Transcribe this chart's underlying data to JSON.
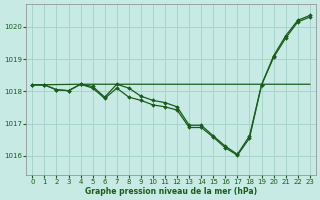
{
  "background_color": "#c8eae4",
  "line_color": "#1a5c1a",
  "grid_color": "#a8d4cc",
  "xlabel": "Graphe pression niveau de la mer (hPa)",
  "ylim": [
    1015.4,
    1020.7
  ],
  "xlim": [
    -0.5,
    23.5
  ],
  "yticks": [
    1016,
    1017,
    1018,
    1019,
    1020
  ],
  "xticks": [
    0,
    1,
    2,
    3,
    4,
    5,
    6,
    7,
    8,
    9,
    10,
    11,
    12,
    13,
    14,
    15,
    16,
    17,
    18,
    19,
    20,
    21,
    22,
    23
  ],
  "s1x": [
    0,
    1,
    2,
    3,
    4,
    5,
    6,
    7,
    8,
    9,
    10,
    11,
    12,
    13,
    14,
    15,
    16,
    17,
    18,
    19,
    20,
    21,
    22,
    23
  ],
  "s1y": [
    1018.2,
    1018.2,
    1018.05,
    1018.02,
    1018.22,
    1018.1,
    1017.78,
    1018.1,
    1017.82,
    1017.72,
    1017.58,
    1017.52,
    1017.42,
    1016.88,
    1016.88,
    1016.58,
    1016.25,
    1016.02,
    1016.55,
    1018.2,
    1019.05,
    1019.65,
    1020.15,
    1020.3
  ],
  "s2x": [
    0,
    4,
    19,
    20,
    21,
    22,
    23
  ],
  "s2y": [
    1018.2,
    1018.22,
    1018.22,
    1018.22,
    1018.22,
    1018.22,
    1018.22
  ],
  "s3x": [
    0,
    1,
    2,
    3,
    4,
    5,
    6,
    7,
    8,
    9,
    10,
    11,
    12,
    13,
    14,
    15,
    16,
    17,
    18,
    19,
    20,
    21,
    22,
    23
  ],
  "s3y": [
    1018.2,
    1018.2,
    1018.05,
    1018.02,
    1018.22,
    1018.15,
    1017.82,
    1018.22,
    1018.1,
    1017.85,
    1017.72,
    1017.65,
    1017.52,
    1016.95,
    1016.95,
    1016.62,
    1016.3,
    1016.05,
    1016.62,
    1018.2,
    1019.1,
    1019.72,
    1020.2,
    1020.35
  ]
}
